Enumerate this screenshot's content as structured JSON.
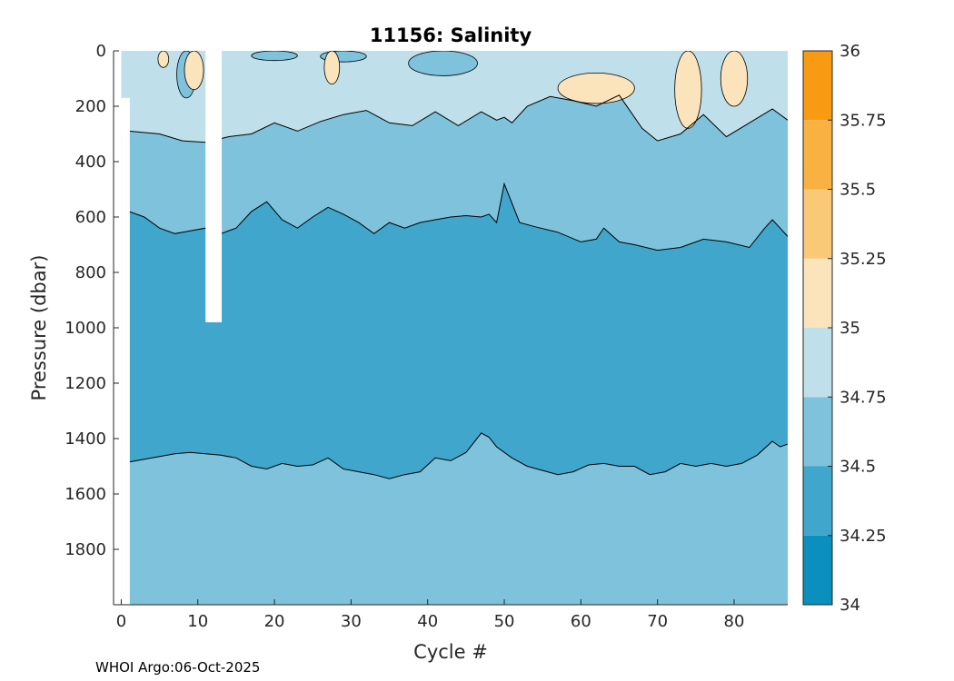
{
  "chart_data": {
    "type": "heatmap",
    "title": "11156:  Salinity",
    "xlabel": "Cycle #",
    "ylabel": "Pressure (dbar)",
    "xlim": [
      -1,
      87
    ],
    "ylim": [
      2000,
      0
    ],
    "y_reversed": true,
    "x_ticks": [
      0,
      10,
      20,
      30,
      40,
      50,
      60,
      70,
      80
    ],
    "y_ticks": [
      0,
      200,
      400,
      600,
      800,
      1000,
      1200,
      1400,
      1600,
      1800
    ],
    "colorbar": {
      "levels": [
        34,
        34.25,
        34.5,
        34.75,
        35,
        35.25,
        35.5,
        35.75,
        36
      ],
      "tick_labels": [
        "34",
        "34.25",
        "34.5",
        "34.75",
        "35",
        "35.25",
        "35.5",
        "35.75",
        "36"
      ],
      "colors": [
        "#0a8fbe",
        "#40a6cc",
        "#7fc2dc",
        "#bfe0ea",
        "#fbe3bb",
        "#f9c978",
        "#f9b141",
        "#f99b12"
      ]
    },
    "layers": [
      {
        "salinity_range": [
          34.5,
          34.75
        ],
        "pressure_range": [
          1480,
          2000
        ],
        "note": "deep layer"
      },
      {
        "salinity_range": [
          34.25,
          34.5
        ],
        "pressure_range": [
          640,
          1480
        ],
        "note": "intermediate minimum"
      },
      {
        "salinity_range": [
          34.5,
          34.75
        ],
        "pressure_range": [
          290,
          640
        ]
      },
      {
        "salinity_range": [
          34.75,
          35.0
        ],
        "pressure_range": [
          0,
          290
        ]
      },
      {
        "salinity_range": [
          35.0,
          35.25
        ],
        "pressure_range": [
          0,
          280
        ],
        "note": "near-surface patches"
      }
    ],
    "contour_lines": [
      {
        "name": "upper",
        "level": 34.75,
        "cycles": [
          1,
          5,
          8,
          11,
          14,
          17,
          20,
          23,
          26,
          29,
          32,
          35,
          38,
          41,
          44,
          47,
          49,
          50,
          51,
          53,
          56,
          59,
          62,
          65,
          68,
          70,
          73,
          76,
          79,
          82,
          85,
          87
        ],
        "pressure": [
          290,
          300,
          325,
          330,
          310,
          300,
          260,
          290,
          255,
          230,
          215,
          260,
          270,
          220,
          270,
          220,
          250,
          240,
          260,
          200,
          165,
          180,
          200,
          160,
          280,
          325,
          300,
          230,
          310,
          260,
          210,
          250
        ]
      },
      {
        "name": "middle",
        "level": 34.5,
        "cycles": [
          1,
          3,
          5,
          7,
          9,
          11,
          13,
          15,
          17,
          19,
          21,
          23,
          25,
          27,
          29,
          31,
          33,
          35,
          37,
          39,
          41,
          43,
          45,
          47,
          48,
          49,
          50,
          52,
          54,
          57,
          60,
          62,
          63,
          65,
          67,
          70,
          73,
          76,
          79,
          82,
          84,
          85,
          86,
          87
        ],
        "pressure": [
          580,
          600,
          640,
          660,
          650,
          640,
          660,
          640,
          580,
          545,
          610,
          640,
          600,
          565,
          590,
          620,
          660,
          620,
          640,
          620,
          610,
          600,
          595,
          600,
          590,
          620,
          480,
          620,
          635,
          655,
          690,
          680,
          640,
          690,
          700,
          720,
          710,
          680,
          690,
          710,
          640,
          610,
          640,
          670
        ]
      },
      {
        "name": "lower",
        "level": 34.5,
        "cycles": [
          1,
          4,
          7,
          9,
          11,
          13,
          15,
          17,
          19,
          21,
          23,
          25,
          27,
          29,
          31,
          33,
          35,
          37,
          39,
          41,
          43,
          45,
          47,
          48,
          49,
          51,
          53,
          55,
          57,
          59,
          61,
          63,
          65,
          67,
          69,
          71,
          73,
          75,
          77,
          79,
          81,
          83,
          85,
          86,
          87
        ],
        "pressure": [
          1485,
          1470,
          1455,
          1450,
          1455,
          1460,
          1470,
          1500,
          1510,
          1490,
          1500,
          1495,
          1470,
          1510,
          1520,
          1530,
          1545,
          1530,
          1520,
          1470,
          1480,
          1450,
          1380,
          1395,
          1430,
          1470,
          1500,
          1515,
          1530,
          1520,
          1495,
          1490,
          1500,
          1500,
          1530,
          1520,
          1490,
          1500,
          1490,
          1500,
          1490,
          1460,
          1410,
          1430,
          1420
        ]
      }
    ],
    "missing_data": [
      {
        "cycles": [
          0,
          1
        ],
        "pressure_range": [
          170,
          2000
        ],
        "note": "no data left edge"
      },
      {
        "cycles": [
          11,
          13
        ],
        "pressure_range": [
          0,
          980
        ],
        "note": "gap in profiles"
      }
    ]
  },
  "footer": {
    "credit": "WHOI Argo:06-Oct-2025"
  }
}
